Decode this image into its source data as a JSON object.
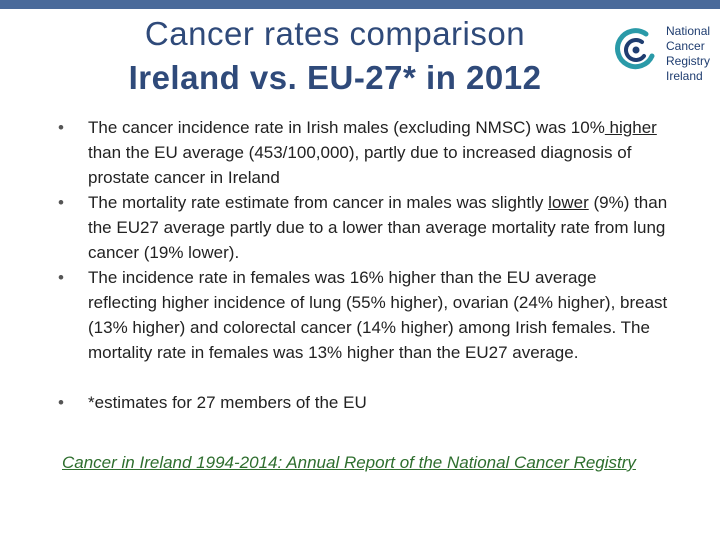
{
  "title": {
    "line1": "Cancer rates comparison",
    "line2": "Ireland vs. EU-27* in 2012"
  },
  "logo": {
    "icon": "ncri-logo-icon",
    "lines": [
      "National",
      "Cancer",
      "Registry",
      "Ireland"
    ]
  },
  "bullets": {
    "b1": {
      "a": "The cancer incidence rate in Irish males (excluding NMSC) was 10%",
      "u": " higher ",
      "b": "than the EU average (453/100,000), partly due to increased diagnosis of prostate cancer in Ireland"
    },
    "b2": {
      "a": "The mortality rate estimate from cancer in males was slightly ",
      "u": "lower",
      "b": " (9%) than the EU27 average partly due to a lower than average mortality rate from lung cancer (19% lower)."
    },
    "b3": "The incidence rate in females was 16% higher than the EU average reflecting higher incidence of lung (55% higher), ovarian (24% higher), breast (13% higher) and colorectal cancer (14% higher) among Irish females. The mortality rate in females was 13% higher than the EU27 average.",
    "b4": "*estimates for 27 members of the EU"
  },
  "link": "Cancer in Ireland 1994-2014: Annual Report of the National Cancer Registry",
  "colors": {
    "title": "#2f4a7a",
    "link": "#2e6e2e",
    "topbar": "#4a6a9a",
    "logo_teal": "#2a9aa8",
    "logo_navy": "#1f3d70"
  }
}
